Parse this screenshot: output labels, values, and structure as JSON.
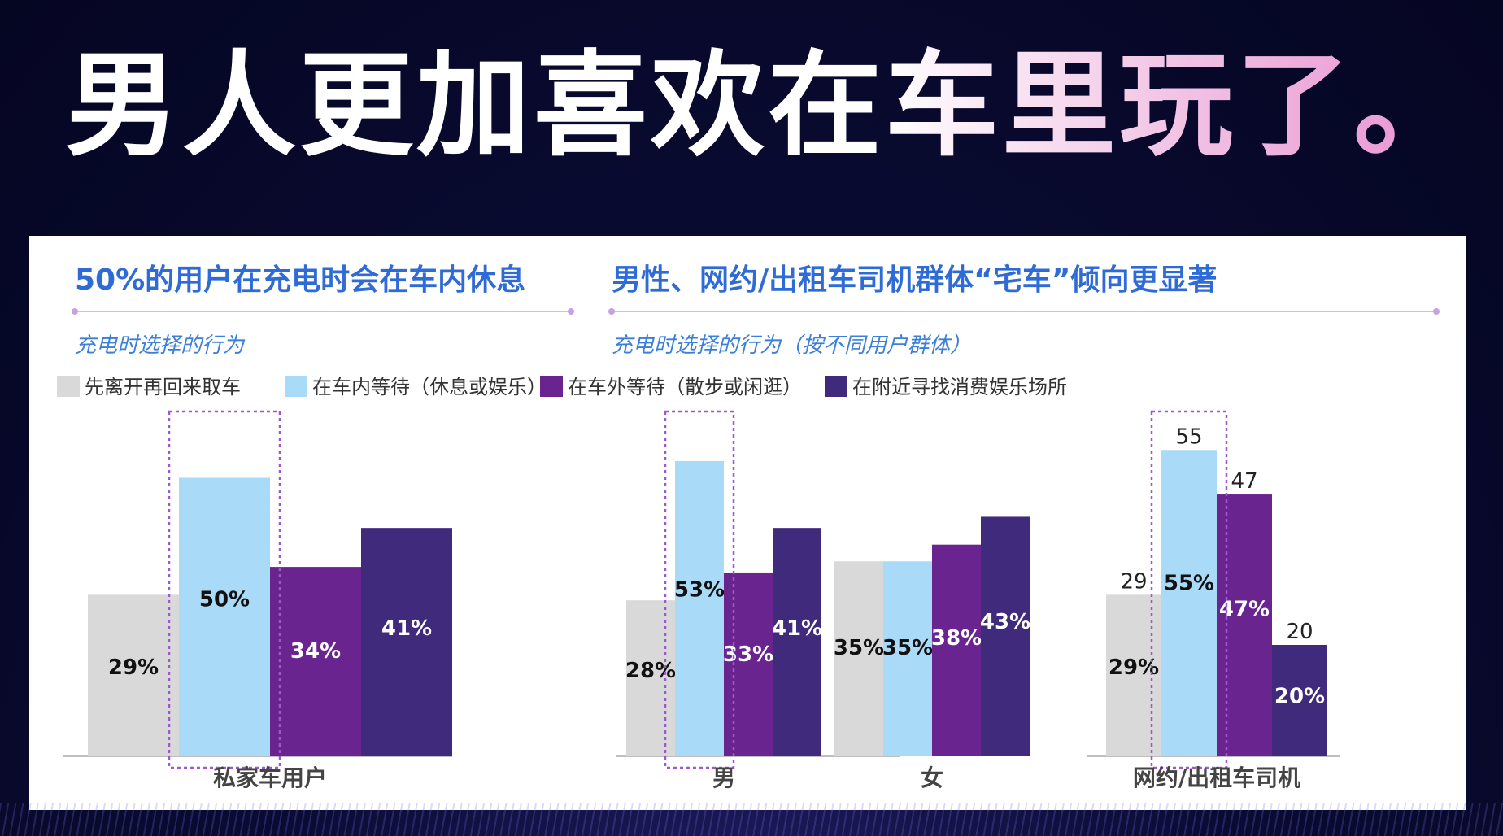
{
  "headline": "男人更加喜欢在车里玩了。",
  "colors": {
    "leave": "#d9d9d9",
    "wait_in_car": "#a9daf7",
    "wait_outside": "#6a2490",
    "nearby": "#3f2a7c",
    "title_blue": "#2f6bd6",
    "subtitle_blue": "#3b7fd8",
    "highlight_border": "#9b59c9"
  },
  "chart_data": {
    "type": "bar",
    "legend_placement": "top",
    "legend": [
      "先离开再回来取车",
      "在车内等待（休息或娱乐）",
      "在车外等待（散步或闲逛）",
      "在附近寻找消费娱乐场所"
    ],
    "panels": [
      {
        "title": "50%的用户在充电时会在车内休息",
        "subtitle": "充电时选择的行为",
        "groups": [
          {
            "category": "私家车用户",
            "values": [
              29,
              50,
              34,
              41
            ],
            "labels": [
              "29%",
              "50%",
              "34%",
              "41%"
            ],
            "highlight_index": 1
          }
        ]
      },
      {
        "title": "男性、网约/出租车司机群体“宅车”倾向更显著",
        "subtitle": "充电时选择的行为（按不同用户群体）",
        "groups": [
          {
            "category": "男",
            "values": [
              28,
              53,
              33,
              41
            ],
            "labels": [
              "28%",
              "53%",
              "33%",
              "41%"
            ],
            "highlight_index": 1
          },
          {
            "category": "女",
            "values": [
              35,
              35,
              38,
              43
            ],
            "labels": [
              "35%",
              "35%",
              "38%",
              "43%"
            ]
          },
          {
            "category": "网约/出租车司机",
            "values": [
              29,
              55,
              47,
              20
            ],
            "labels": [
              "29%",
              "55%",
              "47%",
              "20%"
            ],
            "top_labels": [
              "29",
              "55",
              "47",
              "20"
            ],
            "highlight_index": 1
          }
        ]
      }
    ]
  }
}
